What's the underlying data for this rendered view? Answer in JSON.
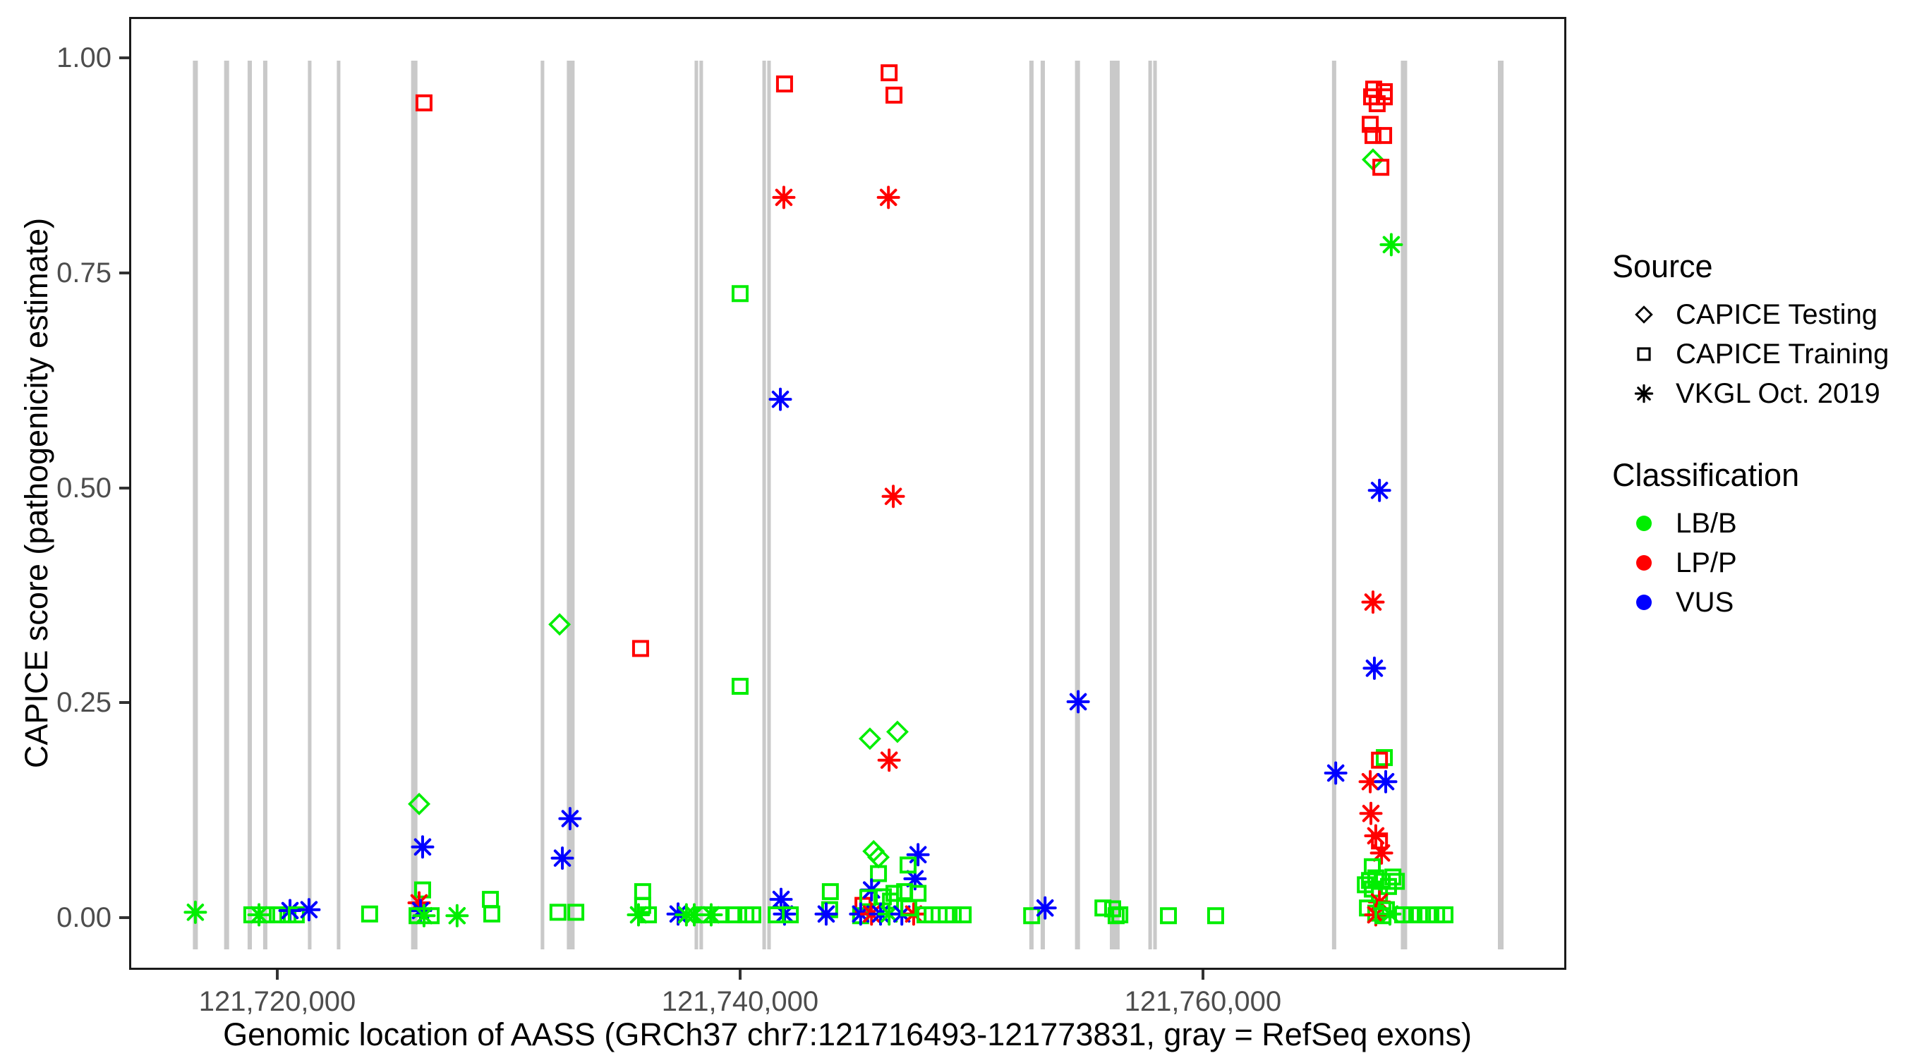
{
  "figure": {
    "background": "#FFFFFF",
    "panel_border": "#1A1A1A"
  },
  "colors": {
    "LB/B": "#00EE00",
    "LP/P": "#FF0000",
    "VUS": "#0000FF",
    "exon": "#C9C9C9",
    "tick_text": "#4D4D4D",
    "tick_mark": "#333333",
    "legend_key": "#000000"
  },
  "legend": {
    "source": {
      "title": "Source",
      "items": [
        {
          "marker": "diamond",
          "label": "CAPICE Testing"
        },
        {
          "marker": "square",
          "label": "CAPICE Training"
        },
        {
          "marker": "asterisk",
          "label": "VKGL Oct. 2019"
        }
      ]
    },
    "classification": {
      "title": "Classification",
      "items": [
        {
          "cls": "LB/B",
          "label": "LB/B"
        },
        {
          "cls": "LP/P",
          "label": "LP/P"
        },
        {
          "cls": "VUS",
          "label": "VUS"
        }
      ]
    }
  },
  "chart_data": {
    "type": "scatter",
    "title": "",
    "xlabel": "Genomic location of AASS (GRCh37 chr7:121716493-121773831, gray = RefSeq exons)",
    "ylabel": "CAPICE score (pathogenicity estimate)",
    "x_domain": [
      121713597,
      121775705
    ],
    "y_domain": [
      -0.061,
      1.048
    ],
    "x_ticks": [
      {
        "value": 121720000,
        "label": "121,720,000"
      },
      {
        "value": 121740000,
        "label": "121,740,000"
      },
      {
        "value": 121760000,
        "label": "121,760,000"
      }
    ],
    "y_ticks": [
      {
        "value": 0.0,
        "label": "0.00"
      },
      {
        "value": 0.25,
        "label": "0.25"
      },
      {
        "value": 0.5,
        "label": "0.50"
      },
      {
        "value": 0.75,
        "label": "0.75"
      },
      {
        "value": 1.0,
        "label": "1.00"
      }
    ],
    "grid": false,
    "legend_position": "right",
    "exons_note": "gray vertical bars = RefSeq exons, format [center_position, width_bp]",
    "exons": [
      [
        121716460,
        215
      ],
      [
        121717810,
        215
      ],
      [
        121718810,
        185
      ],
      [
        121719480,
        185
      ],
      [
        121721400,
        155
      ],
      [
        121722650,
        155
      ],
      [
        121725920,
        275
      ],
      [
        121731460,
        155
      ],
      [
        121732680,
        335
      ],
      [
        121738110,
        155
      ],
      [
        121738320,
        155
      ],
      [
        121741040,
        155
      ],
      [
        121741250,
        155
      ],
      [
        121752590,
        185
      ],
      [
        121753080,
        185
      ],
      [
        121754580,
        215
      ],
      [
        121756190,
        425
      ],
      [
        121757720,
        155
      ],
      [
        121757930,
        155
      ],
      [
        121765670,
        185
      ],
      [
        121768690,
        275
      ],
      [
        121772870,
        245
      ]
    ],
    "points_format": [
      "genomic_position",
      "capice_score",
      "source",
      "classification"
    ],
    "points": [
      [
        121716460,
        0.006,
        "vkgl",
        "LB/B"
      ],
      [
        121718900,
        0.003,
        "training",
        "LB/B"
      ],
      [
        121719210,
        0.003,
        "vkgl",
        "LB/B"
      ],
      [
        121719540,
        0.003,
        "training",
        "LB/B"
      ],
      [
        121720000,
        0.003,
        "training",
        "LB/B"
      ],
      [
        121720460,
        0.003,
        "training",
        "LB/B"
      ],
      [
        121720550,
        0.008,
        "vkgl",
        "VUS"
      ],
      [
        121720820,
        0.003,
        "training",
        "LB/B"
      ],
      [
        121721370,
        0.009,
        "vkgl",
        "VUS"
      ],
      [
        121723990,
        0.004,
        "training",
        "LB/B"
      ],
      [
        121726340,
        0.948,
        "training",
        "LP/P"
      ],
      [
        121726130,
        0.132,
        "testing",
        "LB/B"
      ],
      [
        121726280,
        0.082,
        "vkgl",
        "VUS"
      ],
      [
        121726280,
        0.032,
        "training",
        "LB/B"
      ],
      [
        121726130,
        0.017,
        "vkgl",
        "LP/P"
      ],
      [
        121726190,
        0.008,
        "vkgl",
        "VUS"
      ],
      [
        121726040,
        0.002,
        "training",
        "LB/B"
      ],
      [
        121726340,
        0.002,
        "vkgl",
        "LB/B"
      ],
      [
        121726650,
        0.002,
        "training",
        "LB/B"
      ],
      [
        121727770,
        0.002,
        "vkgl",
        "LB/B"
      ],
      [
        121729210,
        0.021,
        "training",
        "LB/B"
      ],
      [
        121729270,
        0.004,
        "training",
        "LB/B"
      ],
      [
        121732200,
        0.341,
        "testing",
        "LB/B"
      ],
      [
        121732650,
        0.115,
        "vkgl",
        "VUS"
      ],
      [
        121732320,
        0.069,
        "vkgl",
        "VUS"
      ],
      [
        121732130,
        0.006,
        "training",
        "LB/B"
      ],
      [
        121732900,
        0.006,
        "training",
        "LB/B"
      ],
      [
        121735700,
        0.313,
        "training",
        "LP/P"
      ],
      [
        121735790,
        0.03,
        "training",
        "LB/B"
      ],
      [
        121735790,
        0.014,
        "training",
        "LB/B"
      ],
      [
        121735610,
        0.003,
        "vkgl",
        "LB/B"
      ],
      [
        121736040,
        0.003,
        "training",
        "LB/B"
      ],
      [
        121737320,
        0.004,
        "vkgl",
        "VUS"
      ],
      [
        121737680,
        0.003,
        "vkgl",
        "LB/B"
      ],
      [
        121738020,
        0.003,
        "vkgl",
        "LB/B"
      ],
      [
        121738420,
        0.003,
        "training",
        "LB/B"
      ],
      [
        121738750,
        0.003,
        "vkgl",
        "LB/B"
      ],
      [
        121739180,
        0.003,
        "training",
        "LB/B"
      ],
      [
        121739730,
        0.003,
        "training",
        "LB/B"
      ],
      [
        121740250,
        0.003,
        "training",
        "LB/B"
      ],
      [
        121740550,
        0.003,
        "training",
        "LB/B"
      ],
      [
        121740000,
        0.726,
        "training",
        "LB/B"
      ],
      [
        121740000,
        0.269,
        "training",
        "LB/B"
      ],
      [
        121741920,
        0.97,
        "training",
        "LP/P"
      ],
      [
        121741890,
        0.838,
        "vkgl",
        "LP/P"
      ],
      [
        121741740,
        0.603,
        "vkgl",
        "VUS"
      ],
      [
        121741770,
        0.021,
        "vkgl",
        "VUS"
      ],
      [
        121741920,
        0.004,
        "vkgl",
        "VUS"
      ],
      [
        121741560,
        0.003,
        "training",
        "LB/B"
      ],
      [
        121742170,
        0.003,
        "training",
        "LB/B"
      ],
      [
        121743900,
        0.03,
        "training",
        "LB/B"
      ],
      [
        121743870,
        0.009,
        "training",
        "LB/B"
      ],
      [
        121743720,
        0.004,
        "vkgl",
        "VUS"
      ],
      [
        121745310,
        0.014,
        "training",
        "LP/P"
      ],
      [
        121745210,
        0.002,
        "training",
        "LB/B"
      ],
      [
        121746440,
        0.983,
        "training",
        "LP/P"
      ],
      [
        121746650,
        0.957,
        "training",
        "LP/P"
      ],
      [
        121746410,
        0.838,
        "vkgl",
        "LP/P"
      ],
      [
        121746620,
        0.49,
        "vkgl",
        "LP/P"
      ],
      [
        121746440,
        0.183,
        "vkgl",
        "LP/P"
      ],
      [
        121745610,
        0.208,
        "testing",
        "LB/B"
      ],
      [
        121746800,
        0.216,
        "testing",
        "LB/B"
      ],
      [
        121745770,
        0.077,
        "testing",
        "LB/B"
      ],
      [
        121745980,
        0.07,
        "testing",
        "LB/B"
      ],
      [
        121747690,
        0.073,
        "vkgl",
        "VUS"
      ],
      [
        121747560,
        0.045,
        "vkgl",
        "VUS"
      ],
      [
        121747260,
        0.061,
        "training",
        "LB/B"
      ],
      [
        121745980,
        0.051,
        "training",
        "LB/B"
      ],
      [
        121745680,
        0.032,
        "vkgl",
        "VUS"
      ],
      [
        121746650,
        0.028,
        "training",
        "LB/B"
      ],
      [
        121747110,
        0.03,
        "training",
        "LB/B"
      ],
      [
        121747690,
        0.028,
        "training",
        "LB/B"
      ],
      [
        121745520,
        0.023,
        "training",
        "LB/B"
      ],
      [
        121746190,
        0.024,
        "training",
        "LB/B"
      ],
      [
        121746500,
        0.019,
        "training",
        "LB/B"
      ],
      [
        121745210,
        0.004,
        "vkgl",
        "VUS"
      ],
      [
        121745680,
        0.004,
        "vkgl",
        "LP/P"
      ],
      [
        121746070,
        0.004,
        "vkgl",
        "VUS"
      ],
      [
        121746440,
        0.004,
        "vkgl",
        "LB/B"
      ],
      [
        121746990,
        0.004,
        "vkgl",
        "VUS"
      ],
      [
        121747500,
        0.004,
        "vkgl",
        "LP/P"
      ],
      [
        121747290,
        0.011,
        "training",
        "LB/B"
      ],
      [
        121747990,
        0.003,
        "training",
        "LB/B"
      ],
      [
        121748300,
        0.003,
        "training",
        "LB/B"
      ],
      [
        121748600,
        0.003,
        "training",
        "LB/B"
      ],
      [
        121748910,
        0.003,
        "training",
        "LB/B"
      ],
      [
        121749210,
        0.003,
        "training",
        "LB/B"
      ],
      [
        121749640,
        0.003,
        "training",
        "LB/B"
      ],
      [
        121752600,
        0.002,
        "training",
        "LB/B"
      ],
      [
        121753180,
        0.011,
        "vkgl",
        "VUS"
      ],
      [
        121754610,
        0.251,
        "vkgl",
        "VUS"
      ],
      [
        121755680,
        0.011,
        "training",
        "LB/B"
      ],
      [
        121756100,
        0.01,
        "training",
        "LB/B"
      ],
      [
        121756410,
        0.003,
        "training",
        "LB/B"
      ],
      [
        121756250,
        0.002,
        "training",
        "LB/B"
      ],
      [
        121758510,
        0.002,
        "training",
        "LB/B"
      ],
      [
        121760550,
        0.002,
        "training",
        "LB/B"
      ],
      [
        121765740,
        0.168,
        "vkgl",
        "VUS"
      ],
      [
        121767380,
        0.964,
        "training",
        "LP/P"
      ],
      [
        121767840,
        0.961,
        "training",
        "LP/P"
      ],
      [
        121767290,
        0.955,
        "training",
        "LP/P"
      ],
      [
        121767840,
        0.955,
        "training",
        "LP/P"
      ],
      [
        121767530,
        0.947,
        "training",
        "LP/P"
      ],
      [
        121767230,
        0.923,
        "training",
        "LP/P"
      ],
      [
        121767350,
        0.91,
        "training",
        "LP/P"
      ],
      [
        121767810,
        0.91,
        "training",
        "LP/P"
      ],
      [
        121767350,
        0.882,
        "testing",
        "LB/B"
      ],
      [
        121767690,
        0.873,
        "training",
        "LP/P"
      ],
      [
        121768140,
        0.783,
        "vkgl",
        "LB/B"
      ],
      [
        121767630,
        0.497,
        "vkgl",
        "VUS"
      ],
      [
        121767350,
        0.367,
        "vkgl",
        "LP/P"
      ],
      [
        121767410,
        0.29,
        "vkgl",
        "VUS"
      ],
      [
        121767840,
        0.186,
        "training",
        "LB/B"
      ],
      [
        121767630,
        0.183,
        "training",
        "LP/P"
      ],
      [
        121767230,
        0.158,
        "vkgl",
        "LP/P"
      ],
      [
        121767900,
        0.158,
        "vkgl",
        "VUS"
      ],
      [
        121767260,
        0.121,
        "vkgl",
        "LP/P"
      ],
      [
        121767470,
        0.095,
        "vkgl",
        "LP/P"
      ],
      [
        121767630,
        0.089,
        "training",
        "LP/P"
      ],
      [
        121767720,
        0.075,
        "vkgl",
        "LP/P"
      ],
      [
        121767320,
        0.059,
        "training",
        "LB/B"
      ],
      [
        121768210,
        0.047,
        "training",
        "LB/B"
      ],
      [
        121767470,
        0.046,
        "training",
        "LB/B"
      ],
      [
        121767200,
        0.043,
        "training",
        "LB/B"
      ],
      [
        121767750,
        0.042,
        "training",
        "LB/B"
      ],
      [
        121767020,
        0.038,
        "training",
        "LB/B"
      ],
      [
        121768020,
        0.036,
        "training",
        "LB/B"
      ],
      [
        121768360,
        0.042,
        "training",
        "LB/B"
      ],
      [
        121767320,
        0.033,
        "training",
        "LB/B"
      ],
      [
        121767630,
        0.027,
        "training",
        "LB/B"
      ],
      [
        121767630,
        0.018,
        "vkgl",
        "LP/P"
      ],
      [
        121767110,
        0.011,
        "training",
        "LB/B"
      ],
      [
        121767930,
        0.009,
        "training",
        "LB/B"
      ],
      [
        121767470,
        0.005,
        "training",
        "LB/B"
      ],
      [
        121767470,
        0.003,
        "vkgl",
        "LP/P"
      ],
      [
        121768080,
        0.004,
        "vkgl",
        "LB/B"
      ],
      [
        121767780,
        0.002,
        "training",
        "LB/B"
      ],
      [
        121768630,
        0.003,
        "training",
        "LB/B"
      ],
      [
        121769000,
        0.003,
        "training",
        "LB/B"
      ],
      [
        121769360,
        0.003,
        "training",
        "LB/B"
      ],
      [
        121769730,
        0.003,
        "training",
        "LB/B"
      ],
      [
        121770100,
        0.003,
        "training",
        "LB/B"
      ],
      [
        121770460,
        0.003,
        "training",
        "LB/B"
      ]
    ]
  }
}
